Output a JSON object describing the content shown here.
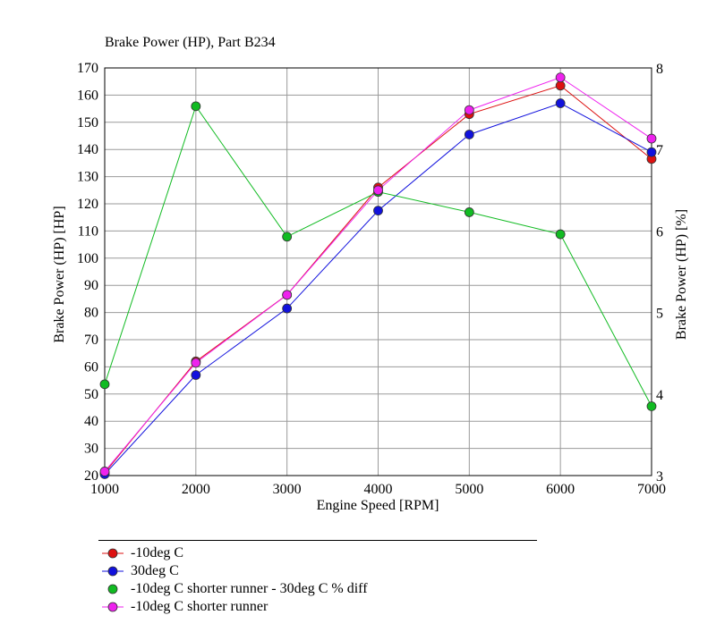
{
  "chart_data": {
    "type": "line",
    "title": "Brake Power (HP), Part B234",
    "xlabel": "Engine Speed [RPM]",
    "ylabel": "Brake Power (HP) [HP]",
    "y2label": "Brake Power (HP) [%]",
    "xlim": [
      1000,
      7000
    ],
    "ylim": [
      20,
      170
    ],
    "y2lim": [
      3,
      8
    ],
    "xticks": [
      1000,
      2000,
      3000,
      4000,
      5000,
      6000,
      7000
    ],
    "yticks": [
      20,
      30,
      40,
      50,
      60,
      70,
      80,
      90,
      100,
      110,
      120,
      130,
      140,
      150,
      160,
      170
    ],
    "y2ticks": [
      3,
      4,
      5,
      6,
      7,
      8
    ],
    "grid": true,
    "legend_position": "below",
    "x": [
      1000,
      2000,
      3000,
      4000,
      5000,
      6000,
      7000
    ],
    "series": [
      {
        "name": "-10deg C",
        "axis": "left",
        "color": "#dd1111",
        "line": true,
        "values": [
          21,
          62,
          86.5,
          126,
          153,
          163.5,
          136.5
        ]
      },
      {
        "name": "30deg C",
        "axis": "left",
        "color": "#1111dd",
        "line": true,
        "values": [
          20.5,
          57,
          81.5,
          117.5,
          145.5,
          157,
          139
        ]
      },
      {
        "name": "-10deg C shorter runner - 30deg C % diff",
        "axis": "right",
        "color": "#11bb22",
        "line": false,
        "values": [
          4.12,
          7.53,
          5.93,
          6.48,
          6.23,
          5.96,
          3.85
        ]
      },
      {
        "name": "-10deg C shorter runner",
        "axis": "left",
        "color": "#ee22ee",
        "line": true,
        "values": [
          21.5,
          61.5,
          86.5,
          125,
          154.5,
          166.5,
          144
        ]
      }
    ]
  }
}
